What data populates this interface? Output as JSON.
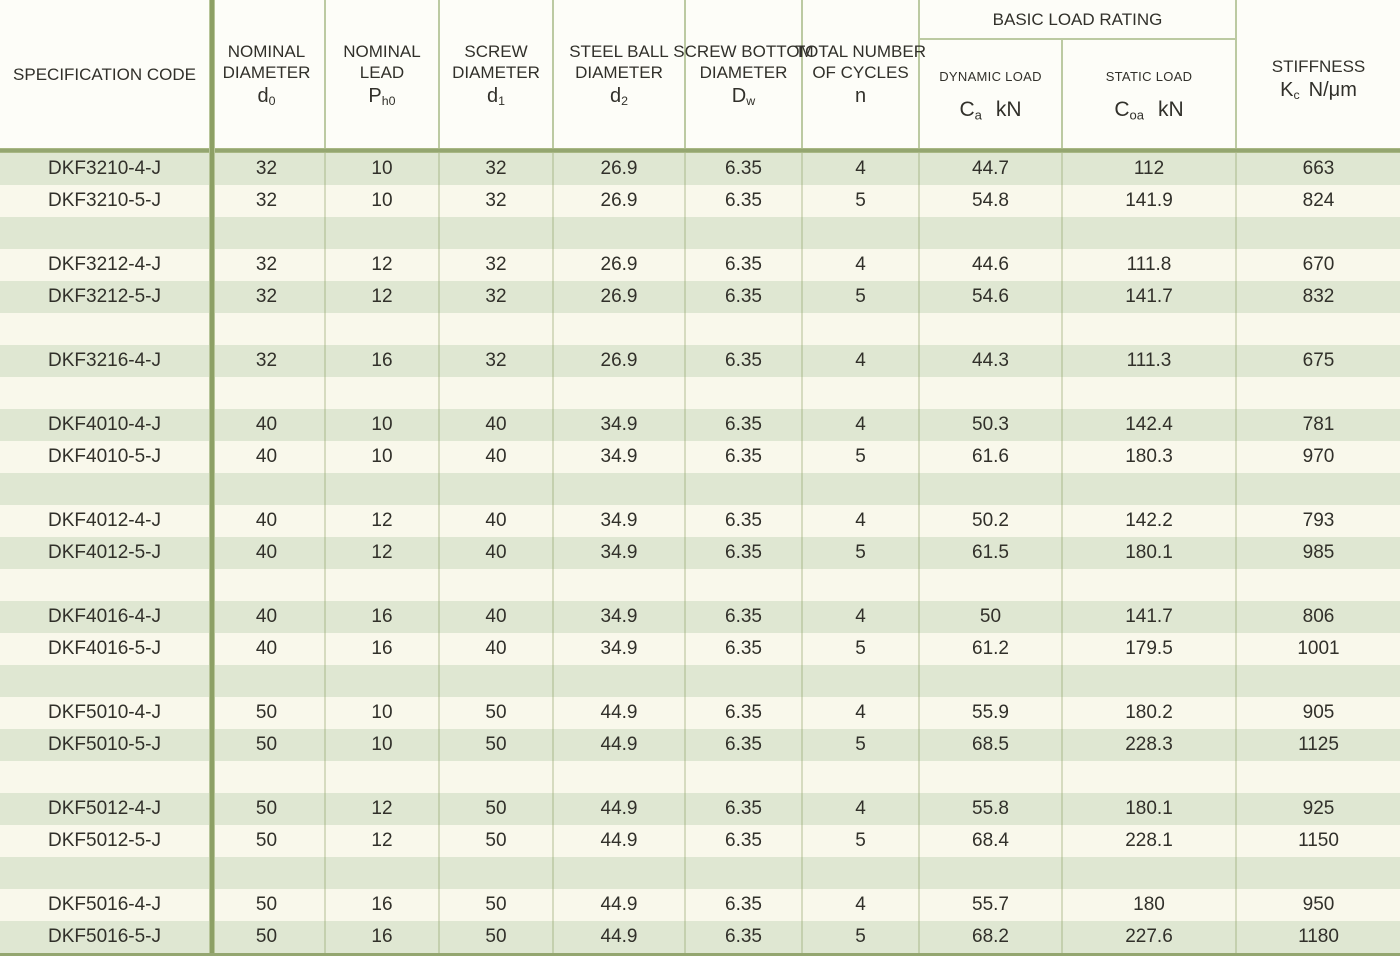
{
  "colors": {
    "stripe_green": "#dfe7d2",
    "stripe_cream": "#f9f8eb",
    "strong_line": "#94a670",
    "thin_line": "#bccaa2",
    "text": "#31302a"
  },
  "header": {
    "spec": "SPECIFICATION CODE",
    "cols": [
      {
        "lines": [
          "NOMINAL",
          "DIAMETER"
        ],
        "sym": "d",
        "sub": "0"
      },
      {
        "lines": [
          "NOMINAL",
          "LEAD"
        ],
        "sym": "P",
        "sub": "h0"
      },
      {
        "lines": [
          "SCREW",
          "DIAMETER"
        ],
        "sym": "d",
        "sub": "1"
      },
      {
        "lines": [
          "STEEL BALL",
          "DIAMETER"
        ],
        "sym": "d",
        "sub": "2"
      },
      {
        "lines": [
          "SCREW BOTTOM",
          "DIAMETER"
        ],
        "sym": "D",
        "sub": "w"
      },
      {
        "lines": [
          "TOTAL NUMBER",
          "OF CYCLES"
        ],
        "sym": "n",
        "sub": ""
      }
    ],
    "basic_load_rating": "BASIC LOAD RATING",
    "dynamic": {
      "label": "DYNAMIC LOAD",
      "sym": "C",
      "sub": "a",
      "unit": "kN"
    },
    "static": {
      "label": "STATIC LOAD",
      "sym": "C",
      "sub": "oa",
      "unit": "kN"
    },
    "stiffness": {
      "label": "STIFFNESS",
      "sym": "K",
      "sub": "c",
      "unit": "N/μm"
    }
  },
  "rows": [
    {
      "type": "data",
      "cells": [
        "DKF3210-4-J",
        "32",
        "10",
        "32",
        "26.9",
        "6.35",
        "4",
        "44.7",
        "112",
        "663"
      ]
    },
    {
      "type": "data",
      "cells": [
        "DKF3210-5-J",
        "32",
        "10",
        "32",
        "26.9",
        "6.35",
        "5",
        "54.8",
        "141.9",
        "824"
      ]
    },
    {
      "type": "empty",
      "cells": [
        "",
        "",
        "",
        "",
        "",
        "",
        "",
        "",
        "",
        ""
      ]
    },
    {
      "type": "data",
      "cells": [
        "DKF3212-4-J",
        "32",
        "12",
        "32",
        "26.9",
        "6.35",
        "4",
        "44.6",
        "111.8",
        "670"
      ]
    },
    {
      "type": "data",
      "cells": [
        "DKF3212-5-J",
        "32",
        "12",
        "32",
        "26.9",
        "6.35",
        "5",
        "54.6",
        "141.7",
        "832"
      ]
    },
    {
      "type": "empty",
      "cells": [
        "",
        "",
        "",
        "",
        "",
        "",
        "",
        "",
        "",
        ""
      ]
    },
    {
      "type": "data",
      "cells": [
        "DKF3216-4-J",
        "32",
        "16",
        "32",
        "26.9",
        "6.35",
        "4",
        "44.3",
        "111.3",
        "675"
      ]
    },
    {
      "type": "empty",
      "cells": [
        "",
        "",
        "",
        "",
        "",
        "",
        "",
        "",
        "",
        ""
      ]
    },
    {
      "type": "data",
      "cells": [
        "DKF4010-4-J",
        "40",
        "10",
        "40",
        "34.9",
        "6.35",
        "4",
        "50.3",
        "142.4",
        "781"
      ]
    },
    {
      "type": "data",
      "cells": [
        "DKF4010-5-J",
        "40",
        "10",
        "40",
        "34.9",
        "6.35",
        "5",
        "61.6",
        "180.3",
        "970"
      ]
    },
    {
      "type": "empty",
      "cells": [
        "",
        "",
        "",
        "",
        "",
        "",
        "",
        "",
        "",
        ""
      ]
    },
    {
      "type": "data",
      "cells": [
        "DKF4012-4-J",
        "40",
        "12",
        "40",
        "34.9",
        "6.35",
        "4",
        "50.2",
        "142.2",
        "793"
      ]
    },
    {
      "type": "data",
      "cells": [
        "DKF4012-5-J",
        "40",
        "12",
        "40",
        "34.9",
        "6.35",
        "5",
        "61.5",
        "180.1",
        "985"
      ]
    },
    {
      "type": "empty",
      "cells": [
        "",
        "",
        "",
        "",
        "",
        "",
        "",
        "",
        "",
        ""
      ]
    },
    {
      "type": "data",
      "cells": [
        "DKF4016-4-J",
        "40",
        "16",
        "40",
        "34.9",
        "6.35",
        "4",
        "50",
        "141.7",
        "806"
      ]
    },
    {
      "type": "data",
      "cells": [
        "DKF4016-5-J",
        "40",
        "16",
        "40",
        "34.9",
        "6.35",
        "5",
        "61.2",
        "179.5",
        "1001"
      ]
    },
    {
      "type": "empty",
      "cells": [
        "",
        "",
        "",
        "",
        "",
        "",
        "",
        "",
        "",
        ""
      ]
    },
    {
      "type": "data",
      "cells": [
        "DKF5010-4-J",
        "50",
        "10",
        "50",
        "44.9",
        "6.35",
        "4",
        "55.9",
        "180.2",
        "905"
      ]
    },
    {
      "type": "data",
      "cells": [
        "DKF5010-5-J",
        "50",
        "10",
        "50",
        "44.9",
        "6.35",
        "5",
        "68.5",
        "228.3",
        "1125"
      ]
    },
    {
      "type": "empty",
      "cells": [
        "",
        "",
        "",
        "",
        "",
        "",
        "",
        "",
        "",
        ""
      ]
    },
    {
      "type": "data",
      "cells": [
        "DKF5012-4-J",
        "50",
        "12",
        "50",
        "44.9",
        "6.35",
        "4",
        "55.8",
        "180.1",
        "925"
      ]
    },
    {
      "type": "data",
      "cells": [
        "DKF5012-5-J",
        "50",
        "12",
        "50",
        "44.9",
        "6.35",
        "5",
        "68.4",
        "228.1",
        "1150"
      ]
    },
    {
      "type": "empty",
      "cells": [
        "",
        "",
        "",
        "",
        "",
        "",
        "",
        "",
        "",
        ""
      ]
    },
    {
      "type": "data",
      "cells": [
        "DKF5016-4-J",
        "50",
        "16",
        "50",
        "44.9",
        "6.35",
        "4",
        "55.7",
        "180",
        "950"
      ]
    },
    {
      "type": "data",
      "cells": [
        "DKF5016-5-J",
        "50",
        "16",
        "50",
        "44.9",
        "6.35",
        "5",
        "68.2",
        "227.6",
        "1180"
      ]
    }
  ]
}
